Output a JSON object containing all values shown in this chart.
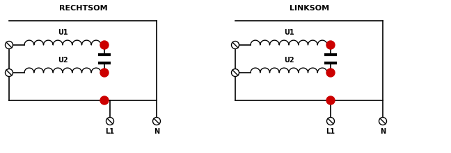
{
  "title_left": "RECHTSOM",
  "title_right": "LINKSOM",
  "background_color": "#ffffff",
  "line_color": "#000000",
  "dot_color": "#cc0000",
  "cap_color": "#000000",
  "label_u1": "U1",
  "label_u2": "U2",
  "label_l1": "L1",
  "label_n": "N",
  "figsize": [
    6.48,
    2.21
  ],
  "dpi": 100
}
